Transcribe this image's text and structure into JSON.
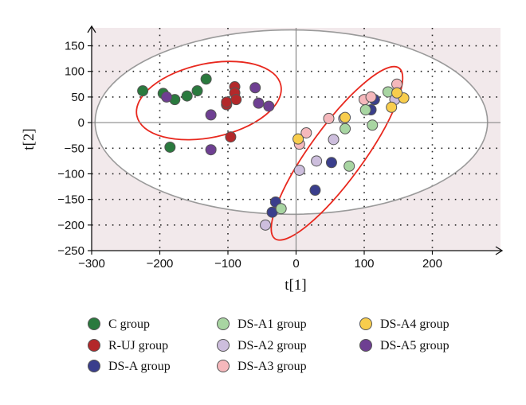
{
  "chart_data": {
    "type": "scatter",
    "xlabel": "t[1]",
    "ylabel": "t[2]",
    "xlim": [
      -300,
      300
    ],
    "ylim": [
      -250,
      185
    ],
    "x_ticks": [
      -300,
      -200,
      -100,
      0,
      100,
      200
    ],
    "y_ticks": [
      150,
      100,
      50,
      0,
      -50,
      -100,
      -150,
      -200,
      -250
    ],
    "grid": true,
    "legend_position": "bottom",
    "colors": {
      "plot_background": "#f2e9eb",
      "ellipse_background": "#ffffff",
      "ellipse_stroke": "#9a9a9a",
      "cluster_stroke": "#e8281e",
      "marker_edge": "#555555"
    },
    "series": [
      {
        "name": "C group",
        "color": "#2a7a3e",
        "points": [
          [
            -225,
            62
          ],
          [
            -195,
            57
          ],
          [
            -178,
            45
          ],
          [
            -160,
            52
          ],
          [
            -145,
            62
          ],
          [
            -132,
            85
          ],
          [
            -185,
            -48
          ]
        ]
      },
      {
        "name": "R-UJ group",
        "color": "#b3282a",
        "points": [
          [
            -102,
            35
          ],
          [
            -102,
            40
          ],
          [
            -90,
            70
          ],
          [
            -90,
            58
          ],
          [
            -88,
            45
          ],
          [
            -96,
            -28
          ]
        ]
      },
      {
        "name": "DS-A group",
        "color": "#3a3e8c",
        "points": [
          [
            52,
            -78
          ],
          [
            28,
            -132
          ],
          [
            -30,
            -155
          ],
          [
            -35,
            -175
          ],
          [
            115,
            45
          ],
          [
            110,
            25
          ]
        ]
      },
      {
        "name": "DS-A1 group",
        "color": "#a8d5a2",
        "points": [
          [
            72,
            -12
          ],
          [
            78,
            -85
          ],
          [
            -22,
            -168
          ],
          [
            102,
            25
          ],
          [
            112,
            -5
          ],
          [
            135,
            60
          ]
        ]
      },
      {
        "name": "DS-A2 group",
        "color": "#cdbedd",
        "points": [
          [
            5,
            -93
          ],
          [
            30,
            -75
          ],
          [
            55,
            -33
          ],
          [
            70,
            8
          ],
          [
            -45,
            -200
          ],
          [
            145,
            45
          ]
        ]
      },
      {
        "name": "DS-A3 group",
        "color": "#f5b8bc",
        "points": [
          [
            5,
            -42
          ],
          [
            15,
            -20
          ],
          [
            48,
            8
          ],
          [
            100,
            45
          ],
          [
            110,
            50
          ],
          [
            148,
            75
          ]
        ]
      },
      {
        "name": "DS-A4 group",
        "color": "#f8cd4c",
        "points": [
          [
            3,
            -32
          ],
          [
            72,
            10
          ],
          [
            140,
            30
          ],
          [
            158,
            48
          ],
          [
            148,
            58
          ]
        ]
      },
      {
        "name": "DS-A5 group",
        "color": "#6e3f92",
        "points": [
          [
            -190,
            50
          ],
          [
            -125,
            15
          ],
          [
            -125,
            -53
          ],
          [
            -60,
            68
          ],
          [
            -55,
            38
          ],
          [
            -40,
            32
          ]
        ]
      }
    ],
    "ellipses": [
      {
        "role": "hotelling",
        "cx": -7,
        "cy": 1,
        "rx": 288,
        "ry": 180,
        "angle": 0
      },
      {
        "role": "cluster-left",
        "cx": -128,
        "cy": 43,
        "rx": 108,
        "ry": 72,
        "angle": -12
      },
      {
        "role": "cluster-right",
        "cx": 60,
        "cy": -60,
        "rx": 155,
        "ry": 52,
        "angle": -54
      }
    ]
  }
}
